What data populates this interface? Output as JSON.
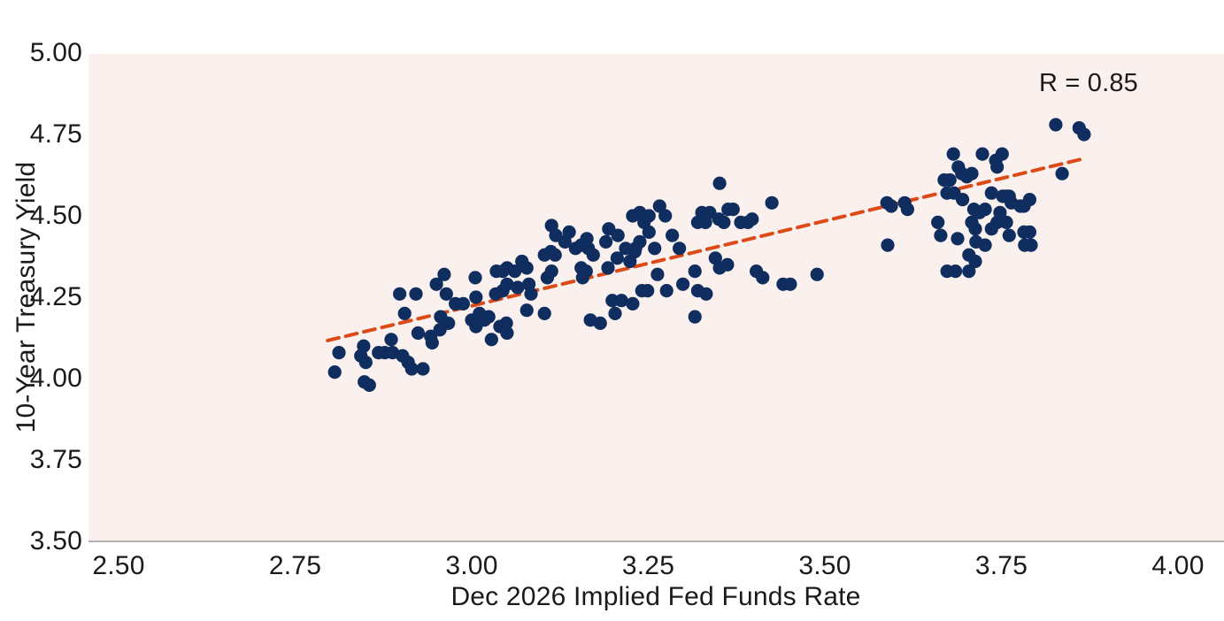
{
  "chart_data": {
    "type": "scatter",
    "title": "",
    "xlabel": "Dec 2026 Implied Fed Funds Rate",
    "ylabel": "10-Year Treasury Yield",
    "annotation": "R = 0.85",
    "x_ticks": [
      "2.50",
      "2.75",
      "3.00",
      "3.25",
      "3.50",
      "3.75",
      "4.00"
    ],
    "x_tick_values": [
      2.5,
      2.75,
      3.0,
      3.25,
      3.5,
      3.75,
      4.0
    ],
    "y_ticks": [
      "5.00",
      "4.75",
      "4.50",
      "4.25",
      "4.00",
      "3.75",
      "3.50"
    ],
    "y_tick_values": [
      5.0,
      4.75,
      4.5,
      4.25,
      4.0,
      3.75,
      3.5
    ],
    "xlim": [
      2.457,
      4.065
    ],
    "ylim": [
      3.5,
      5.0
    ],
    "grid": false,
    "legend": false,
    "plot_bg_color": "#faf1ef",
    "point_color": "#0f2d5e",
    "trend_color": "#dc4a17",
    "axis_line_color": "#b3b3b3",
    "text_color": "#1a1a1a",
    "trendline": {
      "style": "dashed",
      "x": [
        2.796,
        3.863
      ],
      "y": [
        4.117,
        4.674
      ],
      "equation": "y = 0.53x + 2.63"
    },
    "points": [
      [
        2.806,
        4.02
      ],
      [
        2.812,
        4.08
      ],
      [
        2.843,
        4.07
      ],
      [
        2.847,
        4.1
      ],
      [
        2.85,
        4.05
      ],
      [
        2.848,
        3.99
      ],
      [
        2.855,
        3.98
      ],
      [
        2.868,
        4.08
      ],
      [
        2.877,
        4.08
      ],
      [
        2.886,
        4.12
      ],
      [
        2.888,
        4.08
      ],
      [
        2.898,
        4.26
      ],
      [
        2.905,
        4.2
      ],
      [
        2.921,
        4.26
      ],
      [
        2.924,
        4.14
      ],
      [
        2.902,
        4.07
      ],
      [
        2.91,
        4.05
      ],
      [
        2.915,
        4.03
      ],
      [
        2.931,
        4.03
      ],
      [
        2.942,
        4.13
      ],
      [
        2.944,
        4.11
      ],
      [
        2.95,
        4.29
      ],
      [
        2.961,
        4.32
      ],
      [
        2.964,
        4.26
      ],
      [
        2.956,
        4.19
      ],
      [
        2.955,
        4.15
      ],
      [
        2.967,
        4.17
      ],
      [
        2.977,
        4.23
      ],
      [
        2.988,
        4.23
      ],
      [
        3.005,
        4.31
      ],
      [
        3.006,
        4.25
      ],
      [
        3.011,
        4.2
      ],
      [
        3.0,
        4.18
      ],
      [
        3.006,
        4.16
      ],
      [
        3.018,
        4.18
      ],
      [
        3.024,
        4.19
      ],
      [
        3.035,
        4.33
      ],
      [
        3.044,
        4.33
      ],
      [
        3.05,
        4.34
      ],
      [
        3.061,
        4.33
      ],
      [
        3.034,
        4.26
      ],
      [
        3.044,
        4.27
      ],
      [
        3.05,
        4.29
      ],
      [
        3.065,
        4.28
      ],
      [
        3.028,
        4.12
      ],
      [
        3.049,
        4.17
      ],
      [
        3.04,
        4.16
      ],
      [
        3.05,
        4.14
      ],
      [
        3.081,
        4.29
      ],
      [
        3.084,
        4.26
      ],
      [
        3.078,
        4.21
      ],
      [
        3.071,
        4.36
      ],
      [
        3.078,
        4.34
      ],
      [
        3.103,
        4.2
      ],
      [
        3.107,
        4.31
      ],
      [
        3.113,
        4.33
      ],
      [
        3.113,
        4.47
      ],
      [
        3.119,
        4.44
      ],
      [
        3.138,
        4.45
      ],
      [
        3.132,
        4.42
      ],
      [
        3.112,
        4.39
      ],
      [
        3.118,
        4.38
      ],
      [
        3.103,
        4.38
      ],
      [
        3.147,
        4.4
      ],
      [
        3.155,
        4.41
      ],
      [
        3.163,
        4.43
      ],
      [
        3.172,
        4.38
      ],
      [
        3.165,
        4.4
      ],
      [
        3.155,
        4.34
      ],
      [
        3.162,
        4.33
      ],
      [
        3.157,
        4.31
      ],
      [
        3.168,
        4.18
      ],
      [
        3.182,
        4.17
      ],
      [
        3.193,
        4.34
      ],
      [
        3.199,
        4.24
      ],
      [
        3.212,
        4.24
      ],
      [
        3.228,
        4.23
      ],
      [
        3.203,
        4.2
      ],
      [
        3.224,
        4.36
      ],
      [
        3.231,
        4.39
      ],
      [
        3.194,
        4.46
      ],
      [
        3.207,
        4.44
      ],
      [
        3.19,
        4.42
      ],
      [
        3.206,
        4.37
      ],
      [
        3.218,
        4.4
      ],
      [
        3.228,
        4.5
      ],
      [
        3.238,
        4.51
      ],
      [
        3.244,
        4.48
      ],
      [
        3.251,
        4.45
      ],
      [
        3.238,
        4.42
      ],
      [
        3.232,
        4.4
      ],
      [
        3.259,
        4.4
      ],
      [
        3.266,
        4.53
      ],
      [
        3.274,
        4.5
      ],
      [
        3.284,
        4.44
      ],
      [
        3.263,
        4.32
      ],
      [
        3.249,
        4.27
      ],
      [
        3.276,
        4.27
      ],
      [
        3.294,
        4.4
      ],
      [
        3.299,
        4.29
      ],
      [
        3.316,
        4.33
      ],
      [
        3.32,
        4.48
      ],
      [
        3.331,
        4.48
      ],
      [
        3.337,
        4.51
      ],
      [
        3.35,
        4.49
      ],
      [
        3.357,
        4.48
      ],
      [
        3.32,
        4.27
      ],
      [
        3.332,
        4.26
      ],
      [
        3.345,
        4.37
      ],
      [
        3.351,
        4.34
      ],
      [
        3.362,
        4.35
      ],
      [
        3.37,
        4.52
      ],
      [
        3.381,
        4.48
      ],
      [
        3.391,
        4.48
      ],
      [
        3.403,
        4.33
      ],
      [
        3.412,
        4.31
      ],
      [
        3.241,
        4.27
      ],
      [
        3.316,
        4.19
      ],
      [
        3.351,
        4.6
      ],
      [
        3.251,
        4.5
      ],
      [
        3.326,
        4.51
      ],
      [
        3.363,
        4.52
      ],
      [
        3.397,
        4.49
      ],
      [
        3.425,
        4.54
      ],
      [
        3.441,
        4.29
      ],
      [
        3.451,
        4.29
      ],
      [
        3.489,
        4.32
      ],
      [
        3.588,
        4.54
      ],
      [
        3.594,
        4.53
      ],
      [
        3.613,
        4.54
      ],
      [
        3.617,
        4.52
      ],
      [
        3.589,
        4.41
      ],
      [
        3.682,
        4.69
      ],
      [
        3.689,
        4.65
      ],
      [
        3.669,
        4.61
      ],
      [
        3.677,
        4.61
      ],
      [
        3.694,
        4.63
      ],
      [
        3.701,
        4.62
      ],
      [
        3.708,
        4.63
      ],
      [
        3.673,
        4.57
      ],
      [
        3.683,
        4.57
      ],
      [
        3.695,
        4.55
      ],
      [
        3.723,
        4.69
      ],
      [
        3.742,
        4.67
      ],
      [
        3.751,
        4.69
      ],
      [
        3.736,
        4.57
      ],
      [
        3.752,
        4.56
      ],
      [
        3.711,
        4.52
      ],
      [
        3.719,
        4.51
      ],
      [
        3.727,
        4.52
      ],
      [
        3.708,
        4.48
      ],
      [
        3.748,
        4.51
      ],
      [
        3.757,
        4.56
      ],
      [
        3.777,
        4.53
      ],
      [
        3.782,
        4.53
      ],
      [
        3.664,
        4.44
      ],
      [
        3.688,
        4.43
      ],
      [
        3.713,
        4.46
      ],
      [
        3.827,
        4.78
      ],
      [
        3.86,
        4.77
      ],
      [
        3.867,
        4.75
      ],
      [
        3.836,
        4.63
      ],
      [
        3.744,
        4.65
      ],
      [
        3.761,
        4.56
      ],
      [
        3.764,
        4.54
      ],
      [
        3.79,
        4.55
      ],
      [
        3.744,
        4.48
      ],
      [
        3.757,
        4.48
      ],
      [
        3.714,
        4.42
      ],
      [
        3.727,
        4.41
      ],
      [
        3.736,
        4.46
      ],
      [
        3.761,
        4.44
      ],
      [
        3.704,
        4.38
      ],
      [
        3.713,
        4.36
      ],
      [
        3.782,
        4.45
      ],
      [
        3.79,
        4.45
      ],
      [
        3.783,
        4.41
      ],
      [
        3.792,
        4.41
      ],
      [
        3.685,
        4.33
      ],
      [
        3.704,
        4.33
      ],
      [
        3.673,
        4.33
      ],
      [
        3.66,
        4.48
      ]
    ]
  }
}
